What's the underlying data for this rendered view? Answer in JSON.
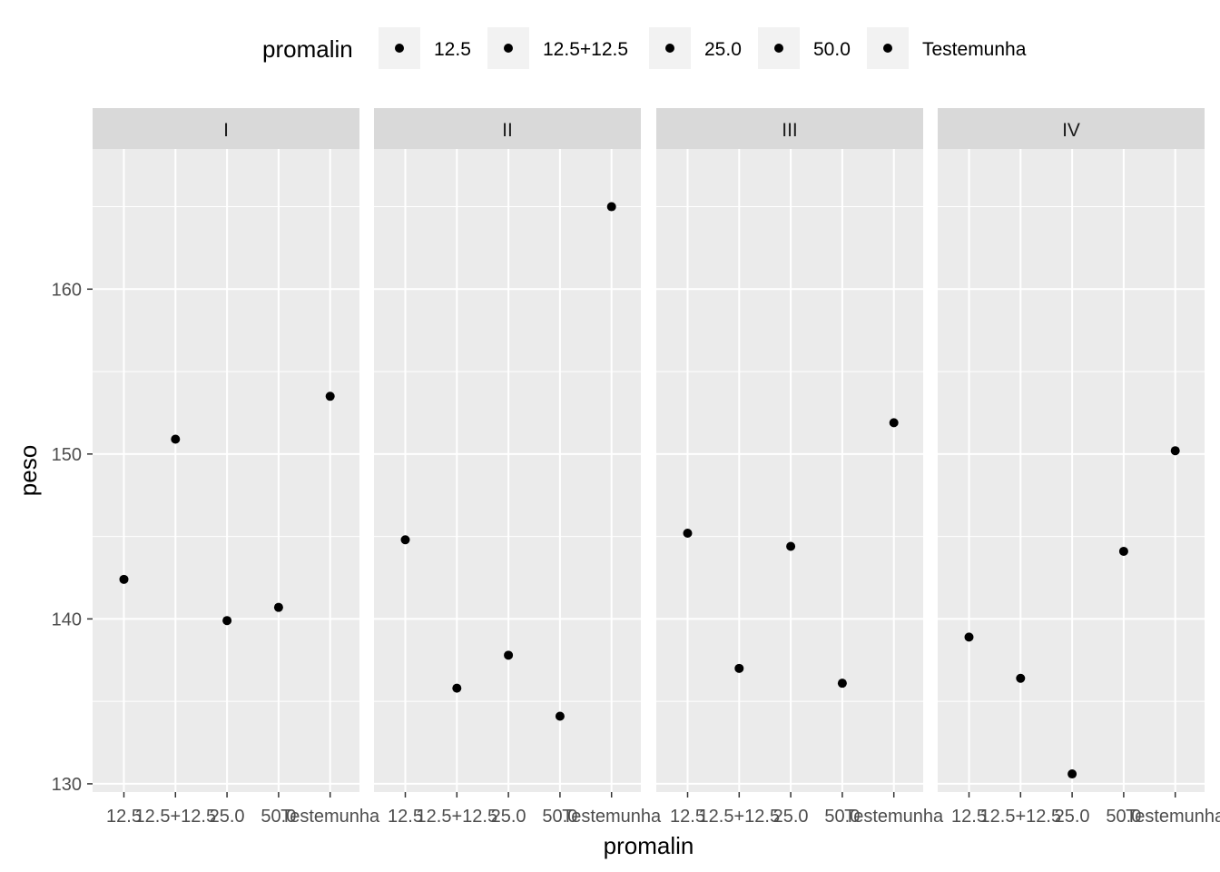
{
  "chart_data": {
    "type": "scatter",
    "title": "",
    "xlabel": "promalin",
    "ylabel": "peso",
    "categories": [
      "12.5",
      "12.5+12.5",
      "25.0",
      "50.0",
      "Testemunha"
    ],
    "ylim": [
      129.5,
      168.5
    ],
    "yticks": [
      130,
      140,
      150,
      160
    ],
    "grid": true,
    "legend": {
      "title": "promalin",
      "position": "top",
      "entries": [
        "12.5",
        "12.5+12.5",
        "25.0",
        "50.0",
        "Testemunha"
      ]
    },
    "facets": [
      {
        "label": "I",
        "values": [
          142.4,
          150.9,
          139.9,
          140.7,
          153.5
        ]
      },
      {
        "label": "II",
        "values": [
          144.8,
          135.8,
          137.8,
          134.1,
          165.0
        ]
      },
      {
        "label": "III",
        "values": [
          145.2,
          137.0,
          144.4,
          136.1,
          151.9
        ]
      },
      {
        "label": "IV",
        "values": [
          138.9,
          136.4,
          130.6,
          144.1,
          150.2
        ]
      }
    ],
    "point_color": "#000000"
  }
}
